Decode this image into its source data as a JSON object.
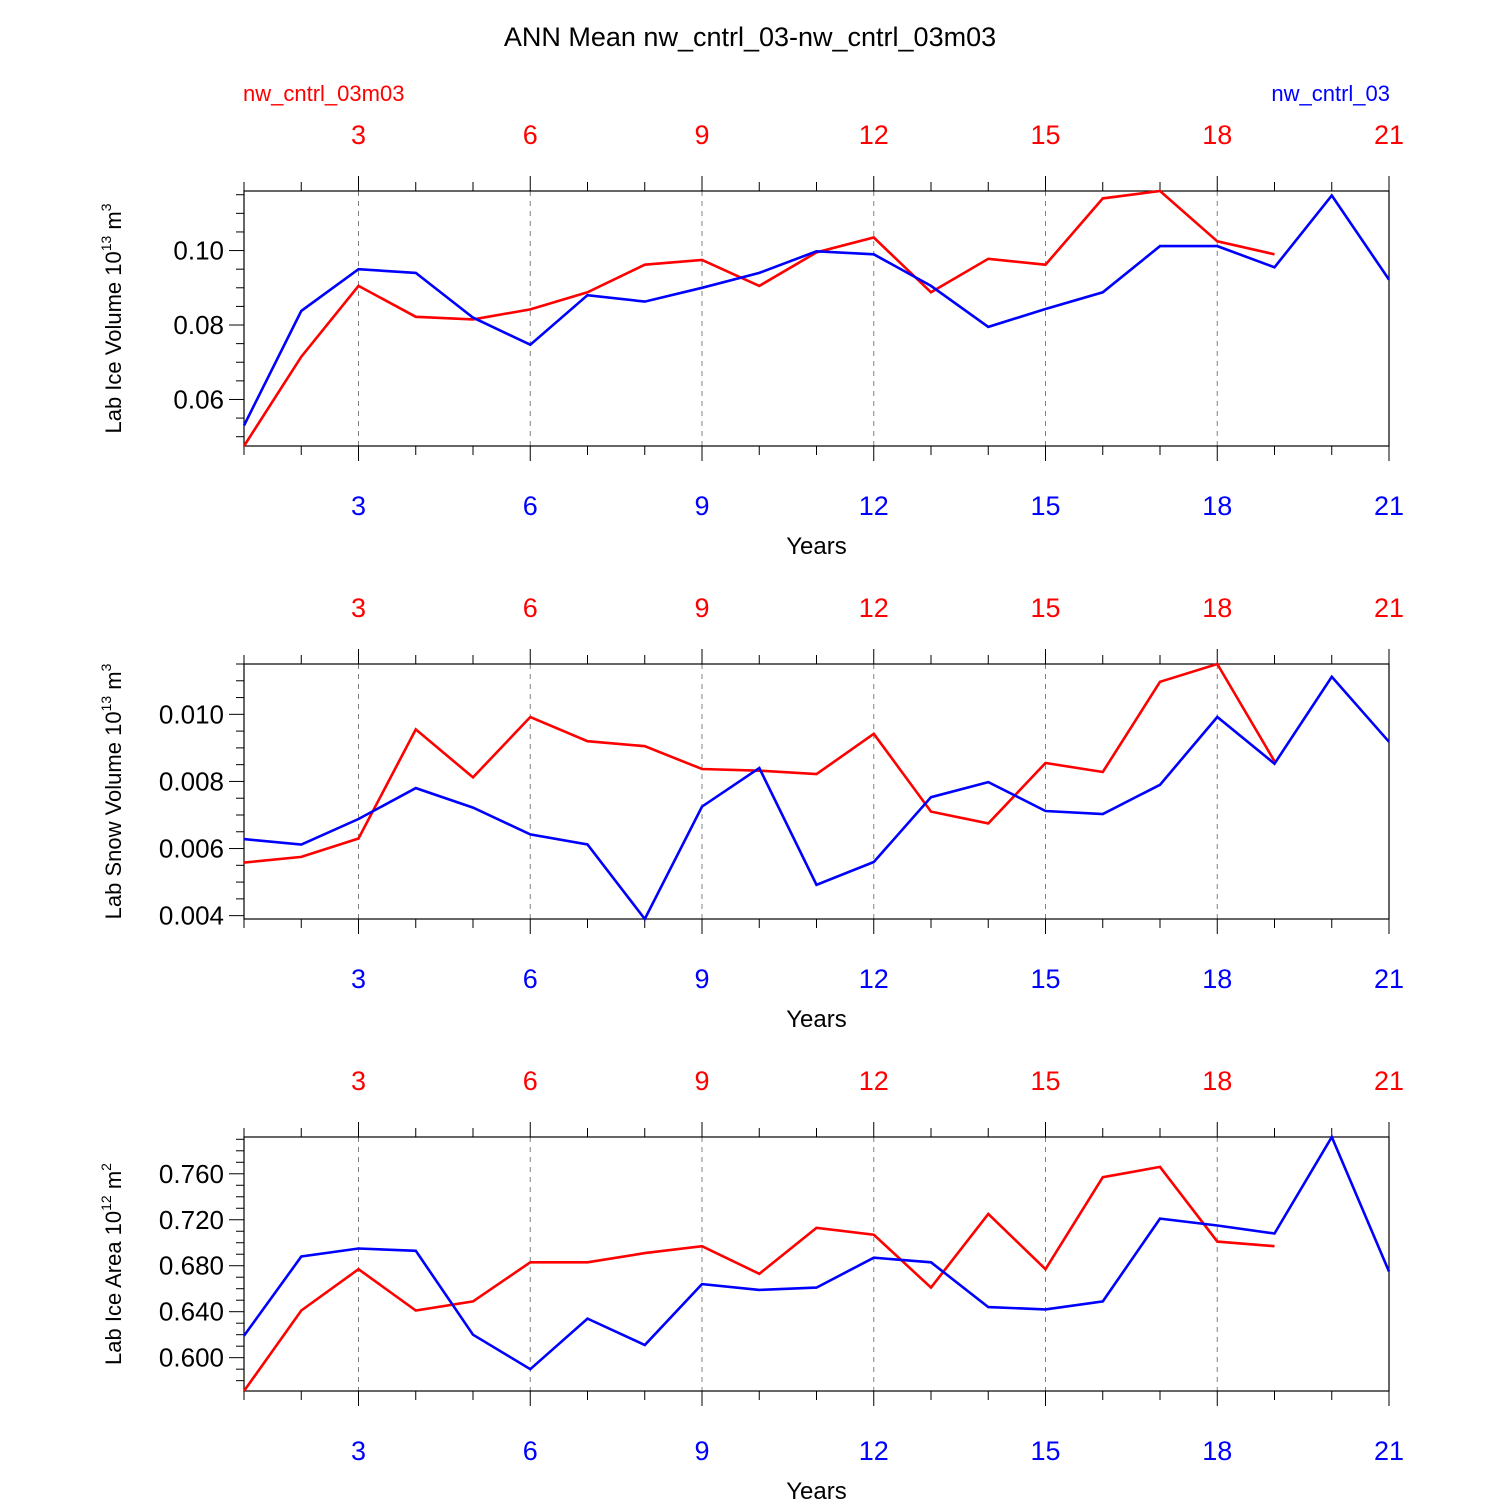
{
  "title": "ANN Mean nw_cntrl_03-nw_cntrl_03m03",
  "legend": {
    "left": "nw_cntrl_03m03",
    "right": "nw_cntrl_03"
  },
  "colors": {
    "series_a": "#ff0000",
    "series_b": "#0000ff",
    "axes": "#000000",
    "grid": "#808080"
  },
  "chart_data": [
    {
      "type": "line",
      "ylabel": "Lab Ice Volume 10",
      "ylabel_exp": "13",
      "ylabel_unit": " m",
      "ylabel_unit_exp": "3",
      "xlabel": "Years",
      "xlim": [
        1,
        21
      ],
      "ylim": [
        0.0475,
        0.116
      ],
      "yticks": [
        0.06,
        0.08,
        0.1
      ],
      "ytick_labels": [
        "0.06",
        "0.08",
        "0.10"
      ],
      "yminor_step": 0.005,
      "xticks": [
        3,
        6,
        9,
        12,
        15,
        18,
        21
      ],
      "xtick_labels": [
        "3",
        "6",
        "9",
        "12",
        "15",
        "18",
        "21"
      ],
      "grid": "vertical-dashed",
      "series": [
        {
          "name": "nw_cntrl_03m03",
          "color": "#ff0000",
          "axis": "top",
          "x": [
            1,
            2,
            3,
            4,
            5,
            6,
            7,
            8,
            9,
            10,
            11,
            12,
            13,
            14,
            15,
            16,
            17,
            18,
            19
          ],
          "values": [
            0.0475,
            0.0715,
            0.0905,
            0.0822,
            0.0815,
            0.0842,
            0.0888,
            0.0962,
            0.0975,
            0.0905,
            0.0995,
            0.1035,
            0.0888,
            0.0978,
            0.0962,
            0.114,
            0.116,
            0.1025,
            0.099
          ]
        },
        {
          "name": "nw_cntrl_03",
          "color": "#0000ff",
          "axis": "bottom",
          "x": [
            1,
            2,
            3,
            4,
            5,
            6,
            7,
            8,
            9,
            10,
            11,
            12,
            13,
            14,
            15,
            16,
            17,
            18,
            19,
            20,
            21
          ],
          "values": [
            0.053,
            0.0838,
            0.095,
            0.094,
            0.082,
            0.0747,
            0.088,
            0.0863,
            0.09,
            0.094,
            0.0998,
            0.099,
            0.0905,
            0.0795,
            0.0843,
            0.0888,
            0.1012,
            0.1012,
            0.0955,
            0.1148,
            0.0922
          ]
        }
      ]
    },
    {
      "type": "line",
      "ylabel": "Lab Snow Volume 10",
      "ylabel_exp": "13",
      "ylabel_unit": " m",
      "ylabel_unit_exp": "3",
      "xlabel": "Years",
      "xlim": [
        1,
        21
      ],
      "ylim": [
        0.0039,
        0.0115
      ],
      "yticks": [
        0.004,
        0.006,
        0.008,
        0.01
      ],
      "ytick_labels": [
        "0.004",
        "0.006",
        "0.008",
        "0.010"
      ],
      "yminor_step": 0.0005,
      "xticks": [
        3,
        6,
        9,
        12,
        15,
        18,
        21
      ],
      "xtick_labels": [
        "3",
        "6",
        "9",
        "12",
        "15",
        "18",
        "21"
      ],
      "grid": "vertical-dashed",
      "series": [
        {
          "name": "nw_cntrl_03m03",
          "color": "#ff0000",
          "axis": "top",
          "x": [
            1,
            2,
            3,
            4,
            5,
            6,
            7,
            8,
            9,
            10,
            11,
            12,
            13,
            14,
            15,
            16,
            17,
            18,
            19
          ],
          "values": [
            0.00558,
            0.00575,
            0.0063,
            0.00955,
            0.00812,
            0.00992,
            0.0092,
            0.00905,
            0.00837,
            0.00832,
            0.00822,
            0.00942,
            0.0071,
            0.00675,
            0.00855,
            0.00828,
            0.01097,
            0.0115,
            0.0086
          ]
        },
        {
          "name": "nw_cntrl_03",
          "color": "#0000ff",
          "axis": "bottom",
          "x": [
            1,
            2,
            3,
            4,
            5,
            6,
            7,
            8,
            9,
            10,
            11,
            12,
            13,
            14,
            15,
            16,
            17,
            18,
            19,
            20,
            21
          ],
          "values": [
            0.00628,
            0.00612,
            0.00688,
            0.0078,
            0.00722,
            0.00642,
            0.00612,
            0.0039,
            0.00725,
            0.0084,
            0.00492,
            0.0056,
            0.00753,
            0.00798,
            0.00712,
            0.00703,
            0.0079,
            0.00992,
            0.00853,
            0.01112,
            0.00918
          ]
        }
      ]
    },
    {
      "type": "line",
      "ylabel": "Lab Ice Area 10",
      "ylabel_exp": "12",
      "ylabel_unit": " m",
      "ylabel_unit_exp": "2",
      "xlabel": "Years",
      "xlim": [
        1,
        21
      ],
      "ylim": [
        0.571,
        0.792
      ],
      "yticks": [
        0.6,
        0.64,
        0.68,
        0.72,
        0.76
      ],
      "ytick_labels": [
        "0.600",
        "0.640",
        "0.680",
        "0.720",
        "0.760"
      ],
      "yminor_step": 0.01,
      "xticks": [
        3,
        6,
        9,
        12,
        15,
        18,
        21
      ],
      "xtick_labels": [
        "3",
        "6",
        "9",
        "12",
        "15",
        "18",
        "21"
      ],
      "grid": "vertical-dashed",
      "series": [
        {
          "name": "nw_cntrl_03m03",
          "color": "#ff0000",
          "axis": "top",
          "x": [
            1,
            2,
            3,
            4,
            5,
            6,
            7,
            8,
            9,
            10,
            11,
            12,
            13,
            14,
            15,
            16,
            17,
            18,
            19
          ],
          "values": [
            0.571,
            0.641,
            0.677,
            0.641,
            0.649,
            0.683,
            0.683,
            0.691,
            0.697,
            0.673,
            0.713,
            0.707,
            0.661,
            0.725,
            0.677,
            0.757,
            0.766,
            0.701,
            0.697
          ]
        },
        {
          "name": "nw_cntrl_03",
          "color": "#0000ff",
          "axis": "bottom",
          "x": [
            1,
            2,
            3,
            4,
            5,
            6,
            7,
            8,
            9,
            10,
            11,
            12,
            13,
            14,
            15,
            16,
            17,
            18,
            19,
            20,
            21
          ],
          "values": [
            0.619,
            0.688,
            0.695,
            0.693,
            0.62,
            0.59,
            0.634,
            0.611,
            0.664,
            0.659,
            0.661,
            0.687,
            0.683,
            0.644,
            0.642,
            0.649,
            0.721,
            0.715,
            0.708,
            0.792,
            0.675
          ]
        }
      ]
    }
  ]
}
